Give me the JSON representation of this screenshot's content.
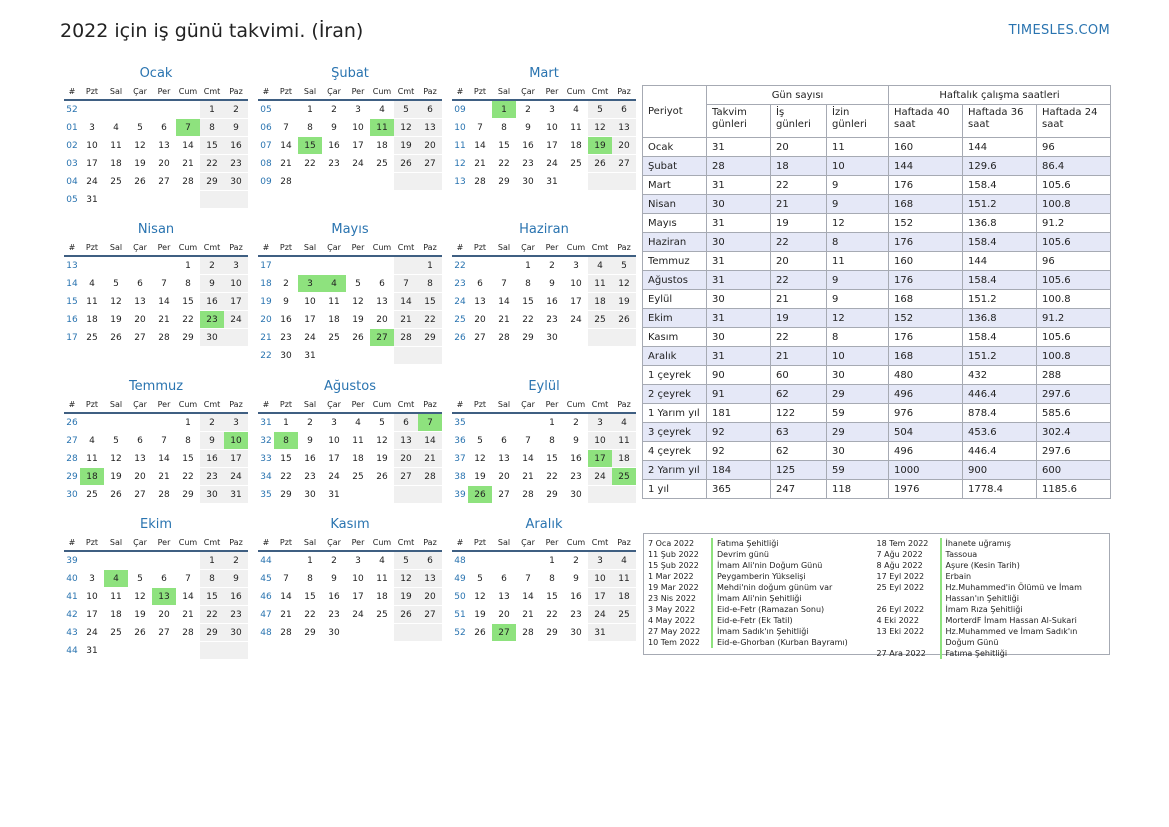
{
  "title": "2022 için iş günü takvimi. (İran)",
  "brand": "TIMESLES.COM",
  "weekday_headers": [
    "#",
    "Pzt",
    "Sal",
    "Çar",
    "Per",
    "Cum",
    "Cmt",
    "Paz"
  ],
  "colors": {
    "accent": "#2a74b0",
    "holiday": "#8ee27e",
    "weekend": "#f0f0f0",
    "row_alt": "#e5e8f7"
  },
  "months": [
    {
      "name": "Ocak",
      "rows": [
        {
          "wk": "52",
          "days": [
            "",
            "",
            "",
            "",
            "",
            "1",
            "2"
          ]
        },
        {
          "wk": "01",
          "days": [
            "3",
            "4",
            "5",
            "6",
            "7",
            "8",
            "9"
          ]
        },
        {
          "wk": "02",
          "days": [
            "10",
            "11",
            "12",
            "13",
            "14",
            "15",
            "16"
          ]
        },
        {
          "wk": "03",
          "days": [
            "17",
            "18",
            "19",
            "20",
            "21",
            "22",
            "23"
          ]
        },
        {
          "wk": "04",
          "days": [
            "24",
            "25",
            "26",
            "27",
            "28",
            "29",
            "30"
          ]
        },
        {
          "wk": "05",
          "days": [
            "31",
            "",
            "",
            "",
            "",
            "",
            ""
          ]
        }
      ],
      "holidays": [
        "7"
      ]
    },
    {
      "name": "Şubat",
      "rows": [
        {
          "wk": "05",
          "days": [
            "",
            "1",
            "2",
            "3",
            "4",
            "5",
            "6"
          ]
        },
        {
          "wk": "06",
          "days": [
            "7",
            "8",
            "9",
            "10",
            "11",
            "12",
            "13"
          ]
        },
        {
          "wk": "07",
          "days": [
            "14",
            "15",
            "16",
            "17",
            "18",
            "19",
            "20"
          ]
        },
        {
          "wk": "08",
          "days": [
            "21",
            "22",
            "23",
            "24",
            "25",
            "26",
            "27"
          ]
        },
        {
          "wk": "09",
          "days": [
            "28",
            "",
            "",
            "",
            "",
            "",
            ""
          ]
        }
      ],
      "holidays": [
        "11",
        "15"
      ]
    },
    {
      "name": "Mart",
      "rows": [
        {
          "wk": "09",
          "days": [
            "",
            "1",
            "2",
            "3",
            "4",
            "5",
            "6"
          ]
        },
        {
          "wk": "10",
          "days": [
            "7",
            "8",
            "9",
            "10",
            "11",
            "12",
            "13"
          ]
        },
        {
          "wk": "11",
          "days": [
            "14",
            "15",
            "16",
            "17",
            "18",
            "19",
            "20"
          ]
        },
        {
          "wk": "12",
          "days": [
            "21",
            "22",
            "23",
            "24",
            "25",
            "26",
            "27"
          ]
        },
        {
          "wk": "13",
          "days": [
            "28",
            "29",
            "30",
            "31",
            "",
            "",
            ""
          ]
        }
      ],
      "holidays": [
        "1",
        "19"
      ]
    },
    {
      "name": "Nisan",
      "rows": [
        {
          "wk": "13",
          "days": [
            "",
            "",
            "",
            "",
            "1",
            "2",
            "3"
          ]
        },
        {
          "wk": "14",
          "days": [
            "4",
            "5",
            "6",
            "7",
            "8",
            "9",
            "10"
          ]
        },
        {
          "wk": "15",
          "days": [
            "11",
            "12",
            "13",
            "14",
            "15",
            "16",
            "17"
          ]
        },
        {
          "wk": "16",
          "days": [
            "18",
            "19",
            "20",
            "21",
            "22",
            "23",
            "24"
          ]
        },
        {
          "wk": "17",
          "days": [
            "25",
            "26",
            "27",
            "28",
            "29",
            "30",
            ""
          ]
        }
      ],
      "holidays": [
        "23"
      ]
    },
    {
      "name": "Mayıs",
      "rows": [
        {
          "wk": "17",
          "days": [
            "",
            "",
            "",
            "",
            "",
            "",
            "1"
          ]
        },
        {
          "wk": "18",
          "days": [
            "2",
            "3",
            "4",
            "5",
            "6",
            "7",
            "8"
          ]
        },
        {
          "wk": "19",
          "days": [
            "9",
            "10",
            "11",
            "12",
            "13",
            "14",
            "15"
          ]
        },
        {
          "wk": "20",
          "days": [
            "16",
            "17",
            "18",
            "19",
            "20",
            "21",
            "22"
          ]
        },
        {
          "wk": "21",
          "days": [
            "23",
            "24",
            "25",
            "26",
            "27",
            "28",
            "29"
          ]
        },
        {
          "wk": "22",
          "days": [
            "30",
            "31",
            "",
            "",
            "",
            "",
            ""
          ]
        }
      ],
      "holidays": [
        "3",
        "4",
        "27"
      ]
    },
    {
      "name": "Haziran",
      "rows": [
        {
          "wk": "22",
          "days": [
            "",
            "",
            "1",
            "2",
            "3",
            "4",
            "5"
          ]
        },
        {
          "wk": "23",
          "days": [
            "6",
            "7",
            "8",
            "9",
            "10",
            "11",
            "12"
          ]
        },
        {
          "wk": "24",
          "days": [
            "13",
            "14",
            "15",
            "16",
            "17",
            "18",
            "19"
          ]
        },
        {
          "wk": "25",
          "days": [
            "20",
            "21",
            "22",
            "23",
            "24",
            "25",
            "26"
          ]
        },
        {
          "wk": "26",
          "days": [
            "27",
            "28",
            "29",
            "30",
            "",
            "",
            ""
          ]
        }
      ],
      "holidays": []
    },
    {
      "name": "Temmuz",
      "rows": [
        {
          "wk": "26",
          "days": [
            "",
            "",
            "",
            "",
            "1",
            "2",
            "3"
          ]
        },
        {
          "wk": "27",
          "days": [
            "4",
            "5",
            "6",
            "7",
            "8",
            "9",
            "10"
          ]
        },
        {
          "wk": "28",
          "days": [
            "11",
            "12",
            "13",
            "14",
            "15",
            "16",
            "17"
          ]
        },
        {
          "wk": "29",
          "days": [
            "18",
            "19",
            "20",
            "21",
            "22",
            "23",
            "24"
          ]
        },
        {
          "wk": "30",
          "days": [
            "25",
            "26",
            "27",
            "28",
            "29",
            "30",
            "31"
          ]
        }
      ],
      "holidays": [
        "10",
        "18"
      ]
    },
    {
      "name": "Ağustos",
      "rows": [
        {
          "wk": "31",
          "days": [
            "1",
            "2",
            "3",
            "4",
            "5",
            "6",
            "7"
          ]
        },
        {
          "wk": "32",
          "days": [
            "8",
            "9",
            "10",
            "11",
            "12",
            "13",
            "14"
          ]
        },
        {
          "wk": "33",
          "days": [
            "15",
            "16",
            "17",
            "18",
            "19",
            "20",
            "21"
          ]
        },
        {
          "wk": "34",
          "days": [
            "22",
            "23",
            "24",
            "25",
            "26",
            "27",
            "28"
          ]
        },
        {
          "wk": "35",
          "days": [
            "29",
            "30",
            "31",
            "",
            "",
            "",
            ""
          ]
        }
      ],
      "holidays": [
        "7",
        "8"
      ]
    },
    {
      "name": "Eylül",
      "rows": [
        {
          "wk": "35",
          "days": [
            "",
            "",
            "",
            "1",
            "2",
            "3",
            "4"
          ]
        },
        {
          "wk": "36",
          "days": [
            "5",
            "6",
            "7",
            "8",
            "9",
            "10",
            "11"
          ]
        },
        {
          "wk": "37",
          "days": [
            "12",
            "13",
            "14",
            "15",
            "16",
            "17",
            "18"
          ]
        },
        {
          "wk": "38",
          "days": [
            "19",
            "20",
            "21",
            "22",
            "23",
            "24",
            "25"
          ]
        },
        {
          "wk": "39",
          "days": [
            "26",
            "27",
            "28",
            "29",
            "30",
            "",
            ""
          ]
        }
      ],
      "holidays": [
        "17",
        "25",
        "26"
      ]
    },
    {
      "name": "Ekim",
      "rows": [
        {
          "wk": "39",
          "days": [
            "",
            "",
            "",
            "",
            "",
            "1",
            "2"
          ]
        },
        {
          "wk": "40",
          "days": [
            "3",
            "4",
            "5",
            "6",
            "7",
            "8",
            "9"
          ]
        },
        {
          "wk": "41",
          "days": [
            "10",
            "11",
            "12",
            "13",
            "14",
            "15",
            "16"
          ]
        },
        {
          "wk": "42",
          "days": [
            "17",
            "18",
            "19",
            "20",
            "21",
            "22",
            "23"
          ]
        },
        {
          "wk": "43",
          "days": [
            "24",
            "25",
            "26",
            "27",
            "28",
            "29",
            "30"
          ]
        },
        {
          "wk": "44",
          "days": [
            "31",
            "",
            "",
            "",
            "",
            "",
            ""
          ]
        }
      ],
      "holidays": [
        "4",
        "13"
      ]
    },
    {
      "name": "Kasım",
      "rows": [
        {
          "wk": "44",
          "days": [
            "",
            "1",
            "2",
            "3",
            "4",
            "5",
            "6"
          ]
        },
        {
          "wk": "45",
          "days": [
            "7",
            "8",
            "9",
            "10",
            "11",
            "12",
            "13"
          ]
        },
        {
          "wk": "46",
          "days": [
            "14",
            "15",
            "16",
            "17",
            "18",
            "19",
            "20"
          ]
        },
        {
          "wk": "47",
          "days": [
            "21",
            "22",
            "23",
            "24",
            "25",
            "26",
            "27"
          ]
        },
        {
          "wk": "48",
          "days": [
            "28",
            "29",
            "30",
            "",
            "",
            "",
            ""
          ]
        }
      ],
      "holidays": []
    },
    {
      "name": "Aralık",
      "rows": [
        {
          "wk": "48",
          "days": [
            "",
            "",
            "",
            "1",
            "2",
            "3",
            "4"
          ]
        },
        {
          "wk": "49",
          "days": [
            "5",
            "6",
            "7",
            "8",
            "9",
            "10",
            "11"
          ]
        },
        {
          "wk": "50",
          "days": [
            "12",
            "13",
            "14",
            "15",
            "16",
            "17",
            "18"
          ]
        },
        {
          "wk": "51",
          "days": [
            "19",
            "20",
            "21",
            "22",
            "23",
            "24",
            "25"
          ]
        },
        {
          "wk": "52",
          "days": [
            "26",
            "27",
            "28",
            "29",
            "30",
            "31",
            ""
          ]
        }
      ],
      "holidays": [
        "27"
      ]
    }
  ],
  "summary": {
    "period_label": "Periyot",
    "group_days": "Gün sayısı",
    "group_hours": "Haftalık çalışma saatleri",
    "columns": [
      "Takvim günleri",
      "İş günleri",
      "İzin günleri",
      "Haftada 40 saat",
      "Haftada 36 saat",
      "Haftada 24 saat"
    ],
    "rows": [
      [
        "Ocak",
        "31",
        "20",
        "11",
        "160",
        "144",
        "96"
      ],
      [
        "Şubat",
        "28",
        "18",
        "10",
        "144",
        "129.6",
        "86.4"
      ],
      [
        "Mart",
        "31",
        "22",
        "9",
        "176",
        "158.4",
        "105.6"
      ],
      [
        "Nisan",
        "30",
        "21",
        "9",
        "168",
        "151.2",
        "100.8"
      ],
      [
        "Mayıs",
        "31",
        "19",
        "12",
        "152",
        "136.8",
        "91.2"
      ],
      [
        "Haziran",
        "30",
        "22",
        "8",
        "176",
        "158.4",
        "105.6"
      ],
      [
        "Temmuz",
        "31",
        "20",
        "11",
        "160",
        "144",
        "96"
      ],
      [
        "Ağustos",
        "31",
        "22",
        "9",
        "176",
        "158.4",
        "105.6"
      ],
      [
        "Eylül",
        "30",
        "21",
        "9",
        "168",
        "151.2",
        "100.8"
      ],
      [
        "Ekim",
        "31",
        "19",
        "12",
        "152",
        "136.8",
        "91.2"
      ],
      [
        "Kasım",
        "30",
        "22",
        "8",
        "176",
        "158.4",
        "105.6"
      ],
      [
        "Aralık",
        "31",
        "21",
        "10",
        "168",
        "151.2",
        "100.8"
      ],
      [
        "1 çeyrek",
        "90",
        "60",
        "30",
        "480",
        "432",
        "288"
      ],
      [
        "2 çeyrek",
        "91",
        "62",
        "29",
        "496",
        "446.4",
        "297.6"
      ],
      [
        "1 Yarım yıl",
        "181",
        "122",
        "59",
        "976",
        "878.4",
        "585.6"
      ],
      [
        "3 çeyrek",
        "92",
        "63",
        "29",
        "504",
        "453.6",
        "302.4"
      ],
      [
        "4 çeyrek",
        "92",
        "62",
        "30",
        "496",
        "446.4",
        "297.6"
      ],
      [
        "2 Yarım yıl",
        "184",
        "125",
        "59",
        "1000",
        "900",
        "600"
      ],
      [
        "1 yıl",
        "365",
        "247",
        "118",
        "1976",
        "1778.4",
        "1185.6"
      ]
    ]
  },
  "holiday_list": {
    "left": [
      {
        "date": "7 Oca 2022",
        "name": "Fatıma Şehitliği"
      },
      {
        "date": "11 Şub 2022",
        "name": "Devrim günü"
      },
      {
        "date": "15 Şub 2022",
        "name": "İmam Ali'nin Doğum Günü"
      },
      {
        "date": "1 Mar 2022",
        "name": "Peygamberin Yükselişi"
      },
      {
        "date": "19 Mar 2022",
        "name": "Mehdi'nin doğum günüm var"
      },
      {
        "date": "23 Nis 2022",
        "name": "İmam Ali'nin Şehitliği"
      },
      {
        "date": "3 May 2022",
        "name": "Eid-e-Fetr (Ramazan Sonu)"
      },
      {
        "date": "4 May 2022",
        "name": "Eid-e-Fetr (Ek Tatil)"
      },
      {
        "date": "27 May 2022",
        "name": "İmam Sadık'ın Şehitliği"
      },
      {
        "date": "10 Tem 2022",
        "name": "Eid-e-Ghorban (Kurban Bayramı)"
      }
    ],
    "right": [
      {
        "date": "18 Tem 2022",
        "name": "İhanete uğramış"
      },
      {
        "date": "7 Ağu 2022",
        "name": "Tassoua"
      },
      {
        "date": "8 Ağu 2022",
        "name": "Aşure (Kesin Tarih)"
      },
      {
        "date": "17 Eyl 2022",
        "name": "Erbain"
      },
      {
        "date": "25 Eyl 2022",
        "name": "Hz.Muhammed'in Ölümü ve İmam Hassan'ın Şehitliği"
      },
      {
        "date": "26 Eyl 2022",
        "name": "İmam Rıza Şehitliği"
      },
      {
        "date": "4 Eki 2022",
        "name": "MorterdF İmam Hassan Al-Sukari"
      },
      {
        "date": "13 Eki 2022",
        "name": "Hz.Muhammed ve İmam Sadık'ın Doğum Günü"
      },
      {
        "date": "27 Ara 2022",
        "name": "Fatıma Şehitliği"
      }
    ]
  }
}
